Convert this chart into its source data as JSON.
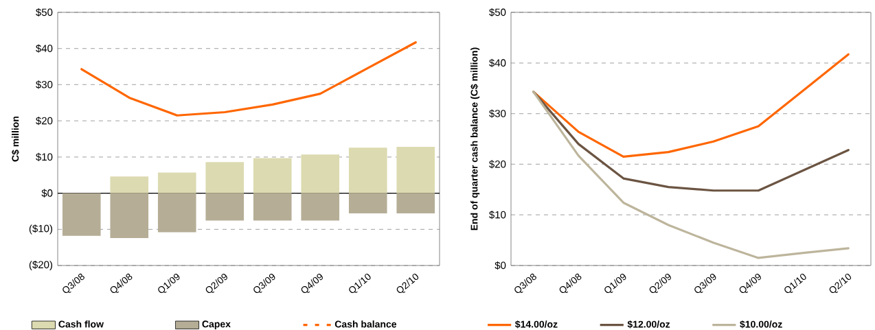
{
  "chart_data": [
    {
      "type": "bar",
      "stacked": true,
      "ylabel": "C$ million",
      "categories": [
        "Q3/08",
        "Q4/08",
        "Q1/09",
        "Q2/09",
        "Q3/09",
        "Q4/09",
        "Q1/10",
        "Q2/10"
      ],
      "series": [
        {
          "name": "Cash flow",
          "color": "#dcdab0",
          "values": [
            null,
            4.6,
            5.7,
            8.6,
            9.7,
            10.7,
            12.6,
            12.8
          ]
        },
        {
          "name": "Capex",
          "color": "#b5ad96",
          "values": [
            -11.8,
            -12.4,
            -10.8,
            -7.6,
            -7.6,
            -7.6,
            -5.6,
            -5.6
          ]
        },
        {
          "name": "Cash balance",
          "type": "line",
          "color": "#ff6600",
          "values": [
            34.3,
            26.4,
            21.5,
            22.4,
            24.5,
            27.5,
            34.6,
            41.7
          ]
        }
      ],
      "ylim": [
        -20,
        50
      ],
      "yticks": [
        {
          "value": -20,
          "label": "($20)"
        },
        {
          "value": -10,
          "label": "($10)"
        },
        {
          "value": 0,
          "label": "$0"
        },
        {
          "value": 10,
          "label": "$10"
        },
        {
          "value": 20,
          "label": "$20"
        },
        {
          "value": 30,
          "label": "$30"
        },
        {
          "value": 40,
          "label": "$40"
        },
        {
          "value": 50,
          "label": "$50"
        }
      ],
      "grid": "y",
      "legend": "bottom"
    },
    {
      "type": "line",
      "ylabel": "End of quarter cash balance (C$ million)",
      "categories": [
        "Q3/08",
        "Q4/08",
        "Q1/09",
        "Q2/09",
        "Q3/09",
        "Q4/09",
        "Q1/10",
        "Q2/10"
      ],
      "series": [
        {
          "name": "$14.00/oz",
          "color": "#ff6600",
          "values": [
            34.3,
            26.4,
            21.5,
            22.4,
            24.5,
            27.5,
            34.6,
            41.7
          ]
        },
        {
          "name": "$12.00/oz",
          "color": "#6b5442",
          "values": [
            34.3,
            24.0,
            17.2,
            15.5,
            14.8,
            14.8,
            18.8,
            22.8
          ]
        },
        {
          "name": "$10.00/oz",
          "color": "#bdb59c",
          "values": [
            34.3,
            21.7,
            12.4,
            8.0,
            4.5,
            1.5,
            2.5,
            3.4
          ]
        }
      ],
      "ylim": [
        0,
        50
      ],
      "yticks": [
        {
          "value": 0,
          "label": "$0"
        },
        {
          "value": 10,
          "label": "$10"
        },
        {
          "value": 20,
          "label": "$20"
        },
        {
          "value": 30,
          "label": "$30"
        },
        {
          "value": 40,
          "label": "$40"
        },
        {
          "value": 50,
          "label": "$50"
        }
      ],
      "grid": "y",
      "legend": "bottom"
    }
  ]
}
